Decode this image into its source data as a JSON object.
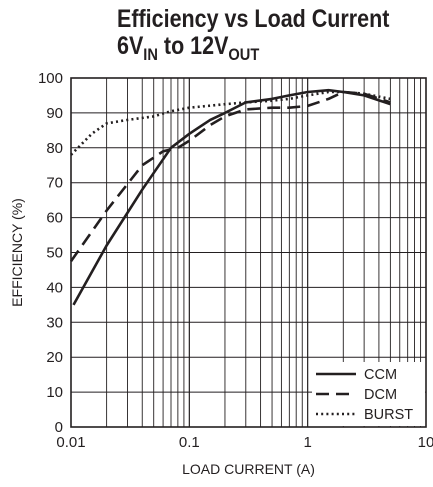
{
  "title": {
    "line1": "Efficiency vs Load Current",
    "line2_v1": "6V",
    "line2_sub1": "IN",
    "line2_mid": " to 12V",
    "line2_sub2": "OUT"
  },
  "chart_data": {
    "type": "line",
    "xscale": "log",
    "xlim": [
      0.01,
      10
    ],
    "ylim": [
      0,
      100
    ],
    "xlabel": "LOAD CURRENT (A)",
    "ylabel": "EFFICIENCY (%)",
    "xticks": [
      "0.01",
      "0.1",
      "1",
      "10"
    ],
    "yticks": [
      "0",
      "10",
      "20",
      "30",
      "40",
      "50",
      "60",
      "70",
      "80",
      "90",
      "100"
    ],
    "grid": true,
    "legend_position": "bottom-right",
    "series": [
      {
        "name": "CCM",
        "style": "solid",
        "x": [
          0.0105,
          0.02,
          0.04,
          0.07,
          0.1,
          0.15,
          0.2,
          0.3,
          0.5,
          0.7,
          1.0,
          1.5,
          2.0,
          3.0,
          5.0
        ],
        "y": [
          35,
          52,
          68,
          80,
          84,
          88,
          90,
          93,
          94,
          95,
          96,
          96.5,
          96,
          95,
          92.5
        ]
      },
      {
        "name": "DCM",
        "style": "dashed",
        "x": [
          0.01,
          0.02,
          0.04,
          0.06,
          0.08,
          0.1,
          0.15,
          0.2,
          0.3,
          0.5,
          0.7,
          1.0,
          1.5,
          2.0,
          3.0,
          5.0
        ],
        "y": [
          47.5,
          62,
          75,
          79,
          80,
          82,
          86.5,
          89,
          91,
          91.5,
          91.5,
          92,
          94,
          96,
          95.5,
          93
        ]
      },
      {
        "name": "BURST",
        "style": "dotted",
        "x": [
          0.01,
          0.015,
          0.02,
          0.03,
          0.05,
          0.07,
          0.1,
          0.2,
          0.3,
          0.5,
          0.7,
          1.0,
          1.5,
          2.0,
          3.0,
          5.0
        ],
        "y": [
          78,
          84,
          87,
          88,
          89,
          90.5,
          91.5,
          92.5,
          93,
          93.5,
          94,
          95,
          96,
          96,
          95.5,
          94
        ]
      }
    ]
  }
}
